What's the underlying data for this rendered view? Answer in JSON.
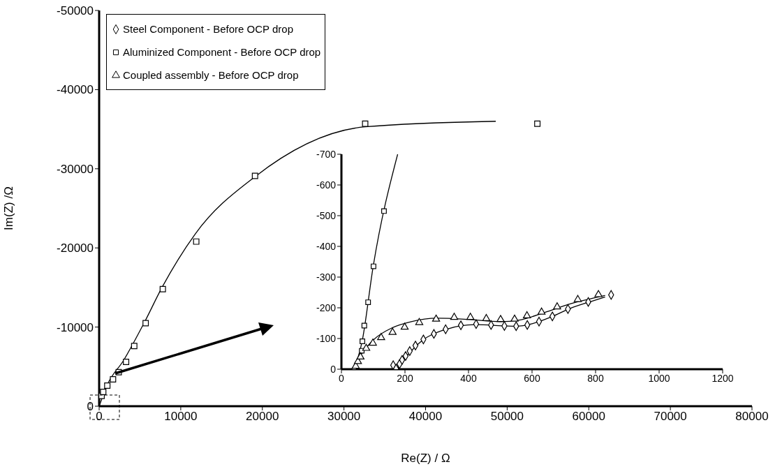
{
  "chart_data": [
    {
      "type": "scatter",
      "xlabel": "Re(Z) / Ω",
      "ylabel": "Im(Z) /Ω",
      "xlim": [
        0,
        80000
      ],
      "xticks": [
        0,
        10000,
        20000,
        30000,
        40000,
        50000,
        60000,
        70000,
        80000
      ],
      "ylim": [
        0,
        -50000
      ],
      "yticks": [
        0,
        -10000,
        -20000,
        -30000,
        -40000,
        -50000
      ],
      "legend": "top left",
      "series": [
        {
          "name": "Steel Component - Before OCP drop",
          "marker": "diamond",
          "color": "#000000"
        },
        {
          "name": "Aluminized Component - Before OCP drop",
          "marker": "square",
          "color": "#000000",
          "x": [
            300,
            500,
            1000,
            1700,
            2400,
            3300,
            4300,
            5700,
            7800,
            11900,
            19100,
            32600,
            53700
          ],
          "values": [
            -1300,
            -1800,
            -2600,
            -3400,
            -4300,
            -5600,
            -7600,
            -10500,
            -14800,
            -20800,
            -29100,
            -35700,
            -35700
          ]
        },
        {
          "name": "Coupled assembly - Before OCP drop",
          "marker": "triangle",
          "color": "#000000"
        },
        {
          "type": "line",
          "marker": "none",
          "color": "#000000",
          "x": [
            0,
            1000,
            3000,
            5500,
            7700,
            11800,
            19100,
            32600,
            48600
          ],
          "values": [
            0,
            -2700,
            -5800,
            -10500,
            -15000,
            -21800,
            -29000,
            -35300,
            -36000
          ]
        }
      ]
    },
    {
      "type": "scatter",
      "xlim": [
        0,
        1200
      ],
      "xticks": [
        0,
        200,
        400,
        600,
        800,
        1000,
        1200
      ],
      "ylim": [
        0,
        -700
      ],
      "yticks": [
        0,
        -100,
        -200,
        -300,
        -400,
        -500,
        -600,
        -700
      ],
      "series": [
        {
          "marker": "diamond",
          "color": "#000000",
          "x": [
            163,
            172,
            183,
            191,
            202,
            215,
            233,
            258,
            291,
            328,
            376,
            424,
            471,
            513,
            550,
            585,
            622,
            664,
            713,
            777,
            849
          ],
          "values": [
            -13,
            -2,
            -17,
            -30,
            -43,
            -59,
            -77,
            -97,
            -115,
            -130,
            -143,
            -147,
            -144,
            -141,
            -140,
            -144,
            -155,
            -172,
            -196,
            -219,
            -242
          ]
        },
        {
          "marker": "square",
          "color": "#000000",
          "x": [
            64,
            66,
            72,
            84,
            101,
            134
          ],
          "values": [
            -60,
            -91,
            -142,
            -218,
            -335,
            -515
          ]
        },
        {
          "marker": "triangle",
          "color": "#000000",
          "x": [
            40,
            45,
            52,
            60,
            78,
            99,
            125,
            161,
            199,
            245,
            298,
            355,
            406,
            456,
            501,
            545,
            584,
            630,
            679,
            744,
            809
          ],
          "values": [
            0,
            -10,
            -25,
            -40,
            -68,
            -85,
            -103,
            -120,
            -137,
            -152,
            -163,
            -169,
            -169,
            -165,
            -162,
            -163,
            -174,
            -186,
            -203,
            -227,
            -243
          ]
        },
        {
          "type": "line",
          "marker": "none",
          "color": "#000000",
          "x": [
            40,
            65,
            100,
            177
          ],
          "values": [
            0,
            -90,
            -335,
            -700
          ]
        },
        {
          "type": "line",
          "marker": "none",
          "color": "#000000",
          "x": [
            35,
            60,
            100,
            160,
            220,
            300,
            400,
            500,
            560,
            640,
            720,
            800,
            830
          ],
          "values": [
            0,
            -45,
            -95,
            -135,
            -155,
            -166,
            -162,
            -155,
            -160,
            -185,
            -213,
            -233,
            -240
          ]
        },
        {
          "type": "line",
          "marker": "none",
          "color": "#000000",
          "x": [
            175,
            200,
            250,
            330,
            420,
            550,
            600,
            660,
            720,
            790,
            830
          ],
          "values": [
            0,
            -35,
            -90,
            -130,
            -145,
            -140,
            -148,
            -170,
            -198,
            -222,
            -235
          ]
        }
      ]
    }
  ]
}
